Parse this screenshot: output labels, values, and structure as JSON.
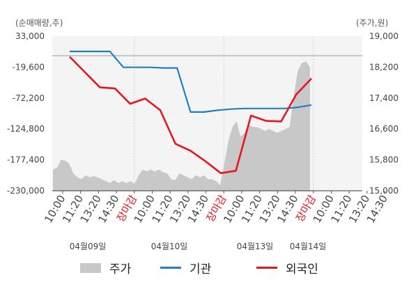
{
  "chart_data": {
    "type": "line",
    "left_axis_unit": "(순매매량,주)",
    "right_axis_unit": "(주가,원)",
    "left_ticks": [
      "33,000",
      "-19,600",
      "-72,200",
      "-124,800",
      "-177,400",
      "-230,000"
    ],
    "right_ticks": [
      "19,000",
      "18,200",
      "17,400",
      "16,600",
      "15,800",
      "15,000"
    ],
    "left_range": [
      -230000,
      33000
    ],
    "right_range": [
      15000,
      19000
    ],
    "x_ticks": [
      "10:00",
      "11:20",
      "13:20",
      "14:30",
      "장마감",
      "10:00",
      "11:20",
      "13:20",
      "14:30",
      "장마감",
      "10:00",
      "11:20",
      "13:20",
      "14:30",
      "장마감",
      "10:00",
      "11:20",
      "13:20",
      "14:30"
    ],
    "date_labels": [
      "04월09일",
      "04월10일",
      "04월13일",
      "04월14일"
    ],
    "colors": {
      "price": "#c8c8c8",
      "institution": "#1e7fc8",
      "foreign": "#e8141e",
      "close_label": "#e8141e"
    },
    "series": [
      {
        "name": "주가",
        "axis": "right",
        "values": [
          15550,
          15600,
          15800,
          15780,
          15700,
          15450,
          15350,
          15300,
          15400,
          15350,
          15380,
          15350,
          15300,
          15250,
          15200,
          15280,
          15200,
          15250,
          15200,
          15250,
          15180,
          15400,
          15550,
          15500,
          15550,
          15500,
          15550,
          15480,
          15450,
          15300,
          15280,
          15450,
          15400,
          15350,
          15300,
          15400,
          15350,
          15400,
          15300,
          15300,
          15250,
          15150,
          15700,
          16300,
          16650,
          16800,
          16400,
          16500,
          16700,
          16650,
          16650,
          16600,
          16550,
          16600,
          16550,
          16500,
          16550,
          16600,
          16650,
          17450,
          18100,
          18300,
          18350,
          18200
        ]
      },
      {
        "name": "기관",
        "axis": "left",
        "values": [
          7000,
          7000,
          7000,
          7000,
          -20000,
          -20000,
          -20000,
          -21000,
          -21000,
          -96000,
          -96000,
          -93000,
          -91000,
          -90000,
          -90000,
          -90000,
          -90000,
          -88000,
          -84000
        ]
      },
      {
        "name": "외국인",
        "axis": "left",
        "values": [
          -2000,
          -28000,
          -54000,
          -56000,
          -82000,
          -73000,
          -93000,
          -150000,
          -162000,
          -180000,
          -200000,
          -196000,
          -102000,
          -111000,
          -112000,
          -66000,
          -39000
        ]
      }
    ]
  }
}
